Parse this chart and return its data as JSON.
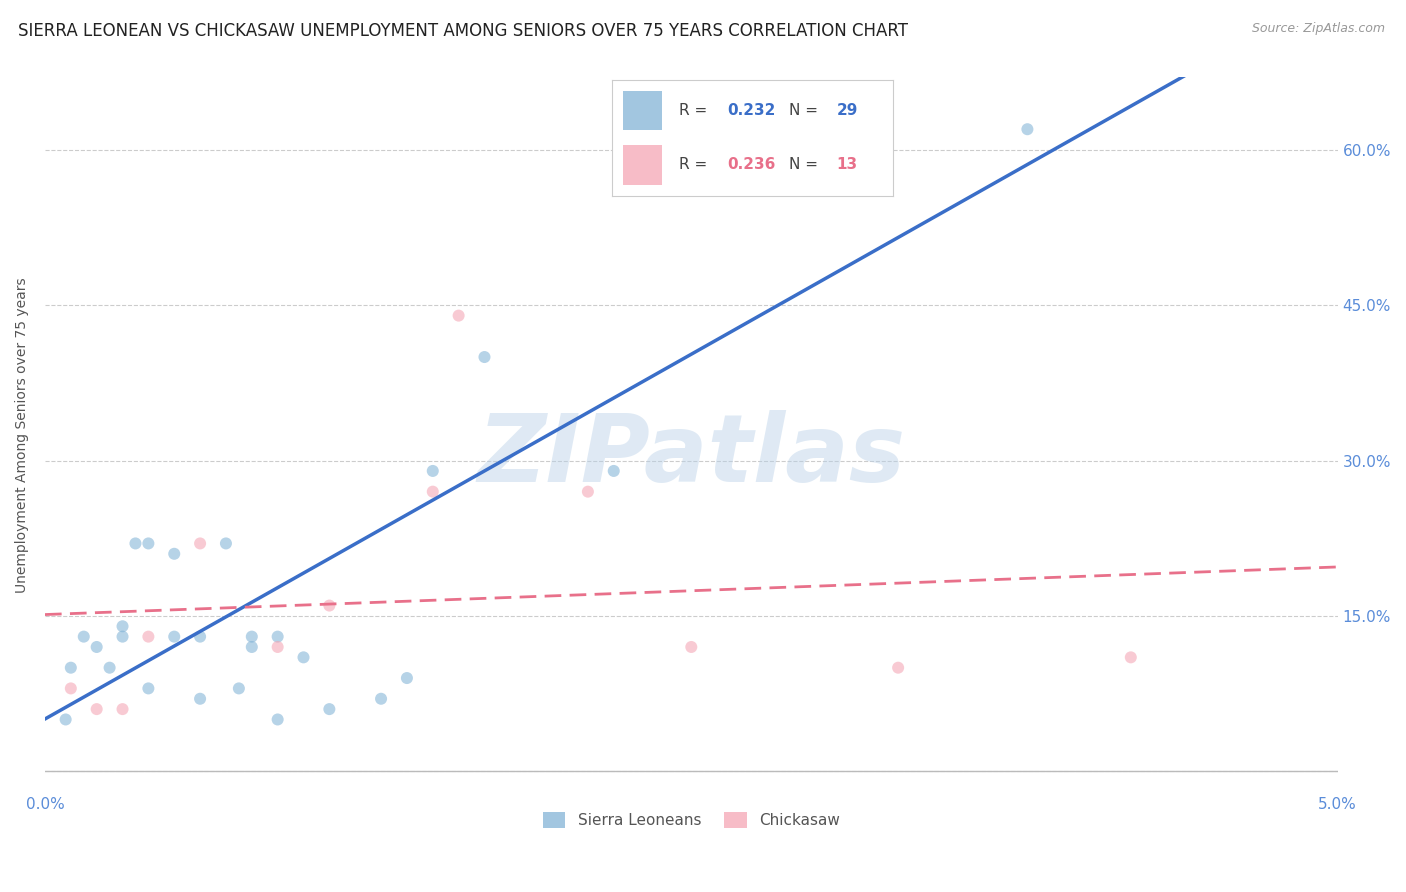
{
  "title": "SIERRA LEONEAN VS CHICKASAW UNEMPLOYMENT AMONG SENIORS OVER 75 YEARS CORRELATION CHART",
  "source": "Source: ZipAtlas.com",
  "ylabel": "Unemployment Among Seniors over 75 years",
  "xlim": [
    0.0,
    0.05
  ],
  "ylim": [
    -0.02,
    0.67
  ],
  "yticks": [
    0.0,
    0.15,
    0.3,
    0.45,
    0.6
  ],
  "ytick_labels": [
    "",
    "15.0%",
    "30.0%",
    "45.0%",
    "60.0%"
  ],
  "xticks": [
    0.0,
    0.01,
    0.02,
    0.03,
    0.04,
    0.05
  ],
  "xtick_labels": [
    "0.0%",
    "",
    "",
    "",
    "",
    "5.0%"
  ],
  "sl_color": "#7BAFD4",
  "chk_color": "#F4A0B0",
  "sl_line_color": "#3A6EC8",
  "chk_line_color": "#E8708A",
  "watermark": "ZIPatlas",
  "background_color": "#FFFFFF",
  "grid_color": "#CCCCCC",
  "sl_x": [
    0.0008,
    0.001,
    0.0015,
    0.002,
    0.0025,
    0.003,
    0.003,
    0.0035,
    0.004,
    0.004,
    0.005,
    0.005,
    0.006,
    0.006,
    0.007,
    0.0075,
    0.008,
    0.008,
    0.009,
    0.009,
    0.01,
    0.011,
    0.013,
    0.014,
    0.015,
    0.017,
    0.022,
    0.023,
    0.038
  ],
  "sl_y": [
    0.05,
    0.1,
    0.13,
    0.12,
    0.1,
    0.14,
    0.13,
    0.22,
    0.22,
    0.08,
    0.13,
    0.21,
    0.07,
    0.13,
    0.22,
    0.08,
    0.12,
    0.13,
    0.05,
    0.13,
    0.11,
    0.06,
    0.07,
    0.09,
    0.29,
    0.4,
    0.29,
    0.62,
    0.62
  ],
  "chk_x": [
    0.001,
    0.002,
    0.003,
    0.004,
    0.006,
    0.009,
    0.011,
    0.015,
    0.016,
    0.021,
    0.025,
    0.033,
    0.042
  ],
  "chk_y": [
    0.08,
    0.06,
    0.06,
    0.13,
    0.22,
    0.12,
    0.16,
    0.27,
    0.44,
    0.27,
    0.12,
    0.1,
    0.11
  ],
  "marker_size": 75,
  "marker_alpha": 0.55,
  "axis_label_color": "#5B8DD9",
  "title_color": "#222222",
  "title_fontsize": 12,
  "label_fontsize": 10,
  "legend_r1": "0.232",
  "legend_n1": "29",
  "legend_r2": "0.236",
  "legend_n2": "13"
}
